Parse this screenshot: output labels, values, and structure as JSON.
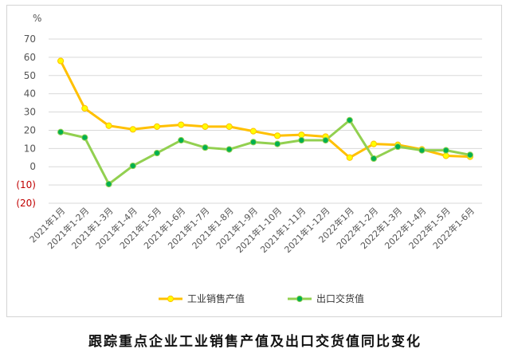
{
  "caption": "跟踪重点企业工业销售产值及出口交货值同比变化",
  "chart_data": {
    "type": "line",
    "title": "跟踪重点企业工业销售产值及出口交货值同比变化",
    "ylabel": "%",
    "ylim": [
      -20,
      70
    ],
    "yticks": [
      70,
      60,
      50,
      40,
      30,
      20,
      10,
      0,
      -10,
      -20
    ],
    "ytick_labels": [
      "70",
      "60",
      "50",
      "40",
      "30",
      "20",
      "10",
      "0",
      "(10)",
      "(20)"
    ],
    "grid": true,
    "legend": "bottom",
    "categories": [
      "2021年1月",
      "2021年1-2月",
      "2021年1-3月",
      "2021年1-4月",
      "2021年1-5月",
      "2021年1-6月",
      "2021年1-7月",
      "2021年1-8月",
      "2021年1-9月",
      "2021年1-10月",
      "2021年1-11月",
      "2021年1-12月",
      "2022年1月",
      "2022年1-2月",
      "2022年1-3月",
      "2022年1-4月",
      "2022年1-5月",
      "2022年1-6月"
    ],
    "series": [
      {
        "name": "工业销售产值",
        "color": "#ffc000",
        "marker_color": "#ffff00",
        "values": [
          58,
          32,
          22.5,
          20.5,
          22,
          23,
          22,
          22,
          19.5,
          17,
          17.5,
          16.5,
          5,
          12.5,
          12,
          9.5,
          6,
          5.5
        ]
      },
      {
        "name": "出口交货值",
        "color": "#92d050",
        "marker_color": "#00b050",
        "values": [
          19,
          16,
          -9.5,
          0.5,
          7.5,
          14.5,
          10.5,
          9.5,
          13.5,
          12.5,
          14.5,
          14.5,
          25.5,
          4.5,
          11,
          9,
          9,
          6.5
        ]
      }
    ]
  }
}
